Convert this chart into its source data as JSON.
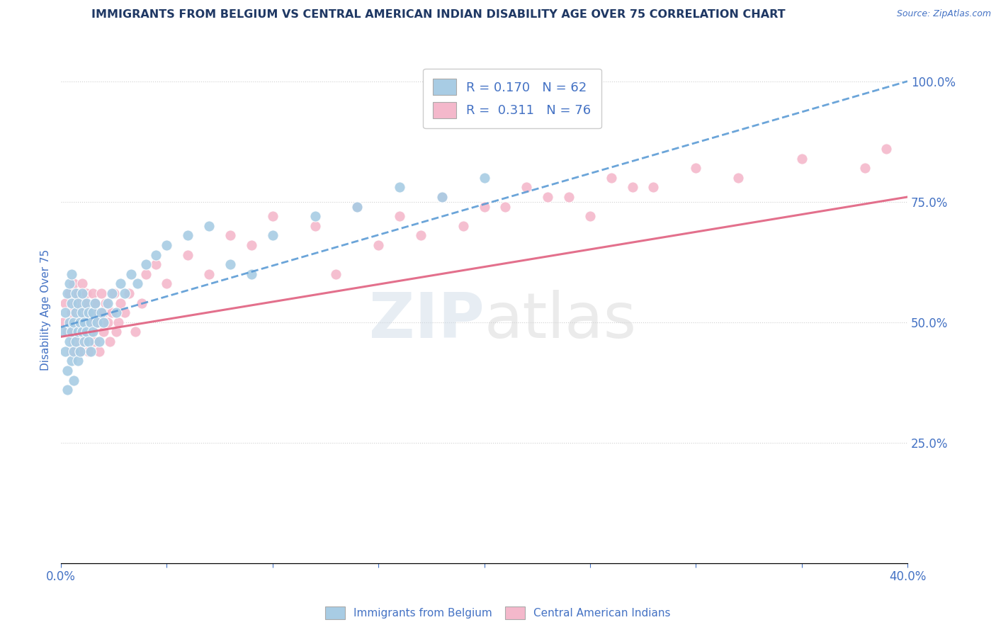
{
  "title": "IMMIGRANTS FROM BELGIUM VS CENTRAL AMERICAN INDIAN DISABILITY AGE OVER 75 CORRELATION CHART",
  "source_text": "Source: ZipAtlas.com",
  "ylabel": "Disability Age Over 75",
  "xlim": [
    0.0,
    0.4
  ],
  "ylim": [
    0.0,
    1.05
  ],
  "y_tick_right_labels": [
    "25.0%",
    "50.0%",
    "75.0%",
    "100.0%"
  ],
  "y_tick_right_values": [
    0.25,
    0.5,
    0.75,
    1.0
  ],
  "legend_label_blue": "Immigrants from Belgium",
  "legend_label_pink": "Central American Indians",
  "R_blue": 0.17,
  "N_blue": 62,
  "R_pink": 0.311,
  "N_pink": 76,
  "blue_color": "#a8cce4",
  "pink_color": "#f4b8cb",
  "blue_line_color": "#5b9bd5",
  "pink_line_color": "#e06080",
  "watermark_zip": "ZIP",
  "watermark_atlas": "atlas",
  "title_color": "#1f3864",
  "axis_label_color": "#4472c4",
  "tick_color": "#4472c4",
  "background_color": "#ffffff",
  "grid_color": "#d0d0d0",
  "blue_x": [
    0.001,
    0.002,
    0.002,
    0.003,
    0.003,
    0.003,
    0.004,
    0.004,
    0.004,
    0.005,
    0.005,
    0.005,
    0.005,
    0.006,
    0.006,
    0.006,
    0.007,
    0.007,
    0.007,
    0.008,
    0.008,
    0.008,
    0.009,
    0.009,
    0.01,
    0.01,
    0.01,
    0.011,
    0.011,
    0.012,
    0.012,
    0.013,
    0.013,
    0.014,
    0.014,
    0.015,
    0.015,
    0.016,
    0.017,
    0.018,
    0.019,
    0.02,
    0.022,
    0.024,
    0.026,
    0.028,
    0.03,
    0.033,
    0.036,
    0.04,
    0.045,
    0.05,
    0.06,
    0.07,
    0.08,
    0.09,
    0.1,
    0.12,
    0.14,
    0.16,
    0.18,
    0.2
  ],
  "blue_y": [
    0.48,
    0.52,
    0.44,
    0.56,
    0.4,
    0.36,
    0.5,
    0.46,
    0.58,
    0.54,
    0.42,
    0.48,
    0.6,
    0.5,
    0.44,
    0.38,
    0.52,
    0.46,
    0.56,
    0.48,
    0.42,
    0.54,
    0.5,
    0.44,
    0.56,
    0.48,
    0.52,
    0.46,
    0.5,
    0.54,
    0.48,
    0.52,
    0.46,
    0.5,
    0.44,
    0.52,
    0.48,
    0.54,
    0.5,
    0.46,
    0.52,
    0.5,
    0.54,
    0.56,
    0.52,
    0.58,
    0.56,
    0.6,
    0.58,
    0.62,
    0.64,
    0.66,
    0.68,
    0.7,
    0.62,
    0.6,
    0.68,
    0.72,
    0.74,
    0.78,
    0.76,
    0.8
  ],
  "pink_x": [
    0.001,
    0.002,
    0.003,
    0.004,
    0.005,
    0.005,
    0.006,
    0.006,
    0.007,
    0.007,
    0.008,
    0.008,
    0.009,
    0.009,
    0.01,
    0.01,
    0.01,
    0.011,
    0.011,
    0.012,
    0.012,
    0.013,
    0.013,
    0.014,
    0.015,
    0.015,
    0.016,
    0.016,
    0.017,
    0.018,
    0.018,
    0.019,
    0.02,
    0.02,
    0.021,
    0.022,
    0.023,
    0.024,
    0.025,
    0.026,
    0.027,
    0.028,
    0.03,
    0.032,
    0.035,
    0.038,
    0.04,
    0.045,
    0.05,
    0.06,
    0.07,
    0.08,
    0.09,
    0.1,
    0.12,
    0.14,
    0.16,
    0.18,
    0.2,
    0.22,
    0.24,
    0.26,
    0.28,
    0.3,
    0.32,
    0.35,
    0.38,
    0.39,
    0.13,
    0.15,
    0.17,
    0.19,
    0.21,
    0.23,
    0.25,
    0.27
  ],
  "pink_y": [
    0.5,
    0.54,
    0.48,
    0.56,
    0.52,
    0.44,
    0.58,
    0.46,
    0.54,
    0.5,
    0.48,
    0.56,
    0.52,
    0.44,
    0.58,
    0.5,
    0.46,
    0.54,
    0.48,
    0.56,
    0.5,
    0.44,
    0.52,
    0.48,
    0.56,
    0.5,
    0.54,
    0.46,
    0.52,
    0.5,
    0.44,
    0.56,
    0.52,
    0.48,
    0.54,
    0.5,
    0.46,
    0.52,
    0.56,
    0.48,
    0.5,
    0.54,
    0.52,
    0.56,
    0.48,
    0.54,
    0.6,
    0.62,
    0.58,
    0.64,
    0.6,
    0.68,
    0.66,
    0.72,
    0.7,
    0.74,
    0.72,
    0.76,
    0.74,
    0.78,
    0.76,
    0.8,
    0.78,
    0.82,
    0.8,
    0.84,
    0.82,
    0.86,
    0.6,
    0.66,
    0.68,
    0.7,
    0.74,
    0.76,
    0.72,
    0.78
  ],
  "blue_line_x0": 0.0,
  "blue_line_x1": 0.4,
  "blue_line_y0": 0.49,
  "blue_line_y1": 1.0,
  "pink_line_x0": 0.0,
  "pink_line_x1": 0.4,
  "pink_line_y0": 0.47,
  "pink_line_y1": 0.76
}
